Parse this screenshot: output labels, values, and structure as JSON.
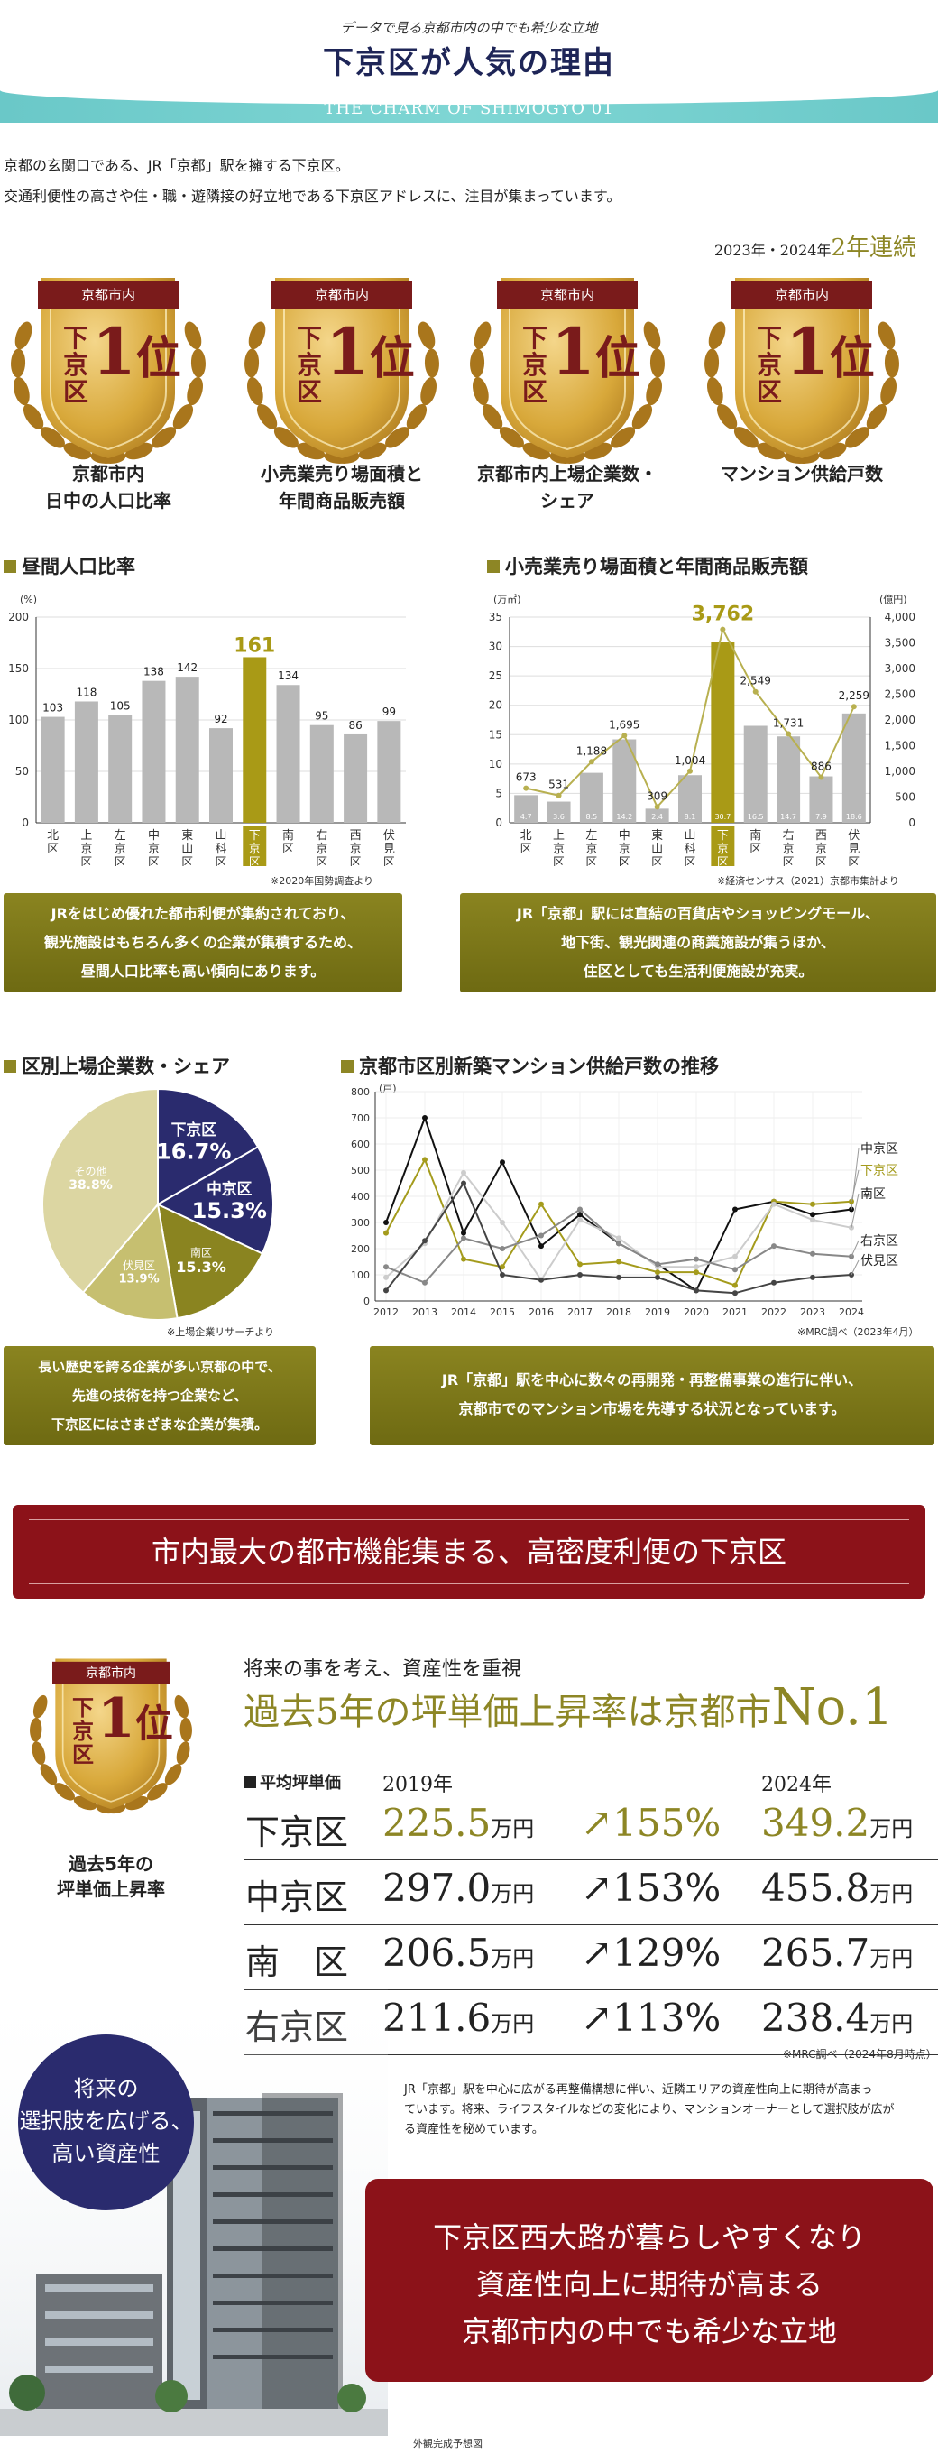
{
  "header": {
    "subtitle": "データで見る京都市内の中でも希少な立地",
    "title": "下京区が人気の理由",
    "band": "THE CHARM OF SHIMOGYO 01"
  },
  "intro": [
    "京都の玄関口である、JR「京都」駅を擁する下京区。",
    "交通利便性の高さや住・職・遊隣接の好立地である下京区アドレスに、注目が集まっています。"
  ],
  "badges": {
    "streak_note_prefix": "2023年・2024年",
    "streak_note_big": "2年連続",
    "top_label": "京都市内",
    "area_label": "下京区",
    "rank_number": "1",
    "rank_unit": "位",
    "captions": [
      [
        "京都市内",
        "日中の人口比率"
      ],
      [
        "小売業売り場面積と",
        "年間商品販売額"
      ],
      [
        "京都市内上場企業数・",
        "シェア"
      ],
      [
        "マンション供給戸数"
      ]
    ],
    "colors": {
      "gold": "#d8a83a",
      "gold_dark": "#a9761c",
      "ribbon": "#7a1b1b"
    }
  },
  "sections": {
    "daytime_title": "昼間人口比率",
    "retail_title": "小売業売り場面積と年間商品販売額",
    "companies_title": "区別上場企業数・シェア",
    "mansion_title": "京都市区別新築マンション供給戸数の推移"
  },
  "notes": {
    "daytime_source": "※2020年国勢調査より",
    "retail_source": "※経済センサス（2021）京都市集計より",
    "companies_source": "※上場企業リサーチより",
    "mansion_source": "※MRC調べ（2023年4月）",
    "price_source": "※MRC調べ（2024年8月時点）",
    "building_caption": "外観完成予想図"
  },
  "boxes": {
    "daytime": [
      "JRをはじめ優れた都市利便が集約されており、",
      "観光施設はもちろん多くの企業が集積するため、",
      "昼間人口比率も高い傾向にあります。"
    ],
    "retail": [
      "JR「京都」駅には直結の百貨店やショッピングモール、",
      "地下街、観光関連の商業施設が集うほか、",
      "住区としても生活利便施設が充実。"
    ],
    "companies": [
      "長い歴史を誇る企業が多い京都の中で、",
      "先進の技術を持つ企業など、",
      "下京区にはさまざまな企業が集積。"
    ],
    "mansion": [
      "JR「京都」駅を中心に数々の再開発・再整備事業の進行に伴い、",
      "京都市でのマンション市場を先導する状況となっています。"
    ]
  },
  "banner": "市内最大の都市機能集まる、高密度利便の下京区",
  "price": {
    "badge_caption": [
      "過去5年の",
      "坪単価上昇率"
    ],
    "lead": "将来の事を考え、資産性を重視",
    "headline_main": "過去5年の坪単価上昇率は京都市",
    "headline_no1": "No.1",
    "table_label": "平均坪単価",
    "year_2019": "2019年",
    "year_2024": "2024年",
    "unit": "万円",
    "rows": [
      {
        "area": "下京区",
        "v2019": "225.5",
        "rate": "↗155%",
        "v2024": "349.2"
      },
      {
        "area": "中京区",
        "v2019": "297.0",
        "rate": "↗153%",
        "v2024": "455.8"
      },
      {
        "area": "南　区",
        "v2019": "206.5",
        "rate": "↗129%",
        "v2024": "265.7"
      },
      {
        "area": "右京区",
        "v2019": "211.6",
        "rate": "↗113%",
        "v2024": "238.4"
      }
    ],
    "desc": [
      "JR「京都」駅を中心に広がる再整備構想に伴い、近隣エリアの資産性向上に期待が高まっ",
      "ています。将来、ライフスタイルなどの変化により、マンションオーナーとして選択肢が広が",
      "る資産性を秘めています。"
    ]
  },
  "circle": [
    "将来の",
    "選択肢を広げる、",
    "高い資産性"
  ],
  "final": [
    "下京区西大路が暮らしやすくなり",
    "資産性向上に期待が高まる",
    "京都市内の中でも希少な立地"
  ],
  "chart_data": [
    {
      "type": "bar",
      "title": "昼間人口比率",
      "ylabel": "(%)",
      "ylim": [
        0,
        200
      ],
      "yticks": [
        0,
        50,
        100,
        150,
        200
      ],
      "categories": [
        "北区",
        "上京区",
        "左京区",
        "中京区",
        "東山区",
        "山科区",
        "下京区",
        "南区",
        "右京区",
        "西京区",
        "伏見区"
      ],
      "values": [
        103,
        118,
        105,
        138,
        142,
        92,
        161,
        134,
        95,
        86,
        99
      ],
      "highlight": "下京区",
      "colors": {
        "bar": "#b8b8b8",
        "highlight": "#a99a16"
      }
    },
    {
      "type": "bar",
      "title": "小売業売り場面積と年間商品販売額",
      "ylabel": "(万㎡)",
      "y2label": "(億円)",
      "ylim": [
        0,
        35
      ],
      "yticks": [
        0,
        5,
        10,
        15,
        20,
        25,
        30,
        35
      ],
      "y2lim": [
        0,
        4000
      ],
      "y2ticks": [
        0,
        500,
        1000,
        1500,
        2000,
        2500,
        3000,
        3500,
        4000
      ],
      "categories": [
        "北区",
        "上京区",
        "左京区",
        "中京区",
        "東山区",
        "山科区",
        "下京区",
        "南区",
        "右京区",
        "西京区",
        "伏見区"
      ],
      "series": [
        {
          "values": [
            4.7,
            3.6,
            8.5,
            14.2,
            2.4,
            8.1,
            30.7,
            16.5,
            14.7,
            7.9,
            18.6
          ]
        },
        {
          "values": [
            673,
            531,
            1188,
            1695,
            309,
            1004,
            3762,
            2549,
            1731,
            886,
            2259
          ]
        }
      ],
      "bar_small_labels": [
        "4.7",
        "3.6",
        "8.5",
        "14.2",
        "2.4",
        "8.1",
        "30.7",
        "16.5",
        "14.7",
        "7.9",
        "18.6"
      ],
      "highlight": "下京区",
      "colors": {
        "bar": "#b8b8b8",
        "highlight": "#a99a16",
        "line": "#b8b050"
      }
    },
    {
      "type": "pie",
      "title": "区別上場企業数・シェア",
      "slices": [
        {
          "name": "下京区",
          "value": 16.7,
          "color": "#2a2b6e"
        },
        {
          "name": "中京区",
          "value": 15.3,
          "color": "#2a2b6e"
        },
        {
          "name": "南区",
          "value": 15.3,
          "color": "#8a8420"
        },
        {
          "name": "伏見区",
          "value": 13.9,
          "color": "#c6bf70"
        },
        {
          "name": "その他",
          "value": 38.8,
          "color": "#dcd6a2"
        }
      ],
      "labels": {
        "percent_sign": "%"
      }
    },
    {
      "type": "line",
      "title": "京都市区別新築マンション供給戸数の推移",
      "ylabel": "(戸)",
      "ylim": [
        0,
        800
      ],
      "yticks": [
        0,
        100,
        200,
        300,
        400,
        500,
        600,
        700,
        800
      ],
      "x": [
        "2012",
        "2013",
        "2014",
        "2015",
        "2016",
        "2017",
        "2018",
        "2019",
        "2020",
        "2021",
        "2022",
        "2023",
        "2024"
      ],
      "series": [
        {
          "name": "中京区",
          "color": "#111111",
          "values": [
            300,
            700,
            260,
            530,
            210,
            330,
            220,
            140,
            40,
            350,
            380,
            330,
            350
          ]
        },
        {
          "name": "下京区",
          "color": "#a49b1c",
          "values": [
            260,
            540,
            160,
            130,
            370,
            140,
            150,
            110,
            110,
            60,
            380,
            370,
            380
          ]
        },
        {
          "name": "南区",
          "color": "#cccccc",
          "values": [
            90,
            220,
            490,
            300,
            80,
            310,
            240,
            130,
            130,
            170,
            370,
            310,
            280
          ]
        },
        {
          "name": "右京区",
          "color": "#888888",
          "values": [
            130,
            70,
            240,
            200,
            250,
            350,
            220,
            140,
            160,
            120,
            210,
            180,
            170
          ]
        },
        {
          "name": "伏見区",
          "color": "#444444",
          "values": [
            40,
            230,
            450,
            100,
            80,
            100,
            90,
            90,
            40,
            30,
            70,
            90,
            100
          ]
        }
      ]
    }
  ]
}
